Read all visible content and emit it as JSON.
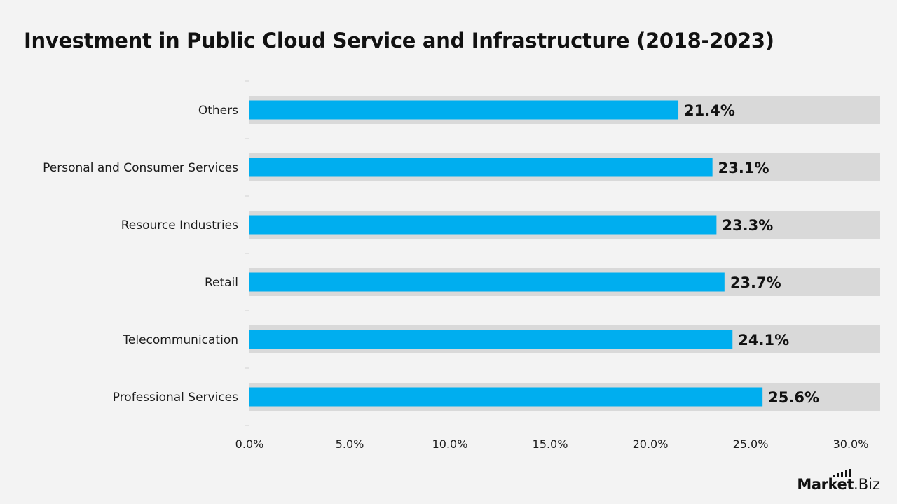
{
  "colors": {
    "bar": "#00aeef",
    "track": "#d9d9d9",
    "axis": "#d0d0d0",
    "text": "#1a1a1a"
  },
  "chart_data": {
    "type": "bar",
    "orientation": "horizontal",
    "title": "Investment in Public Cloud Service and Infrastructure (2018-2023)",
    "xlabel": "",
    "ylabel": "",
    "categories": [
      "Others",
      "Personal and Consumer Services",
      "Resource Industries",
      "Retail",
      "Telecommunication",
      "Professional Services"
    ],
    "values": [
      21.4,
      23.1,
      23.3,
      23.7,
      24.1,
      25.6
    ],
    "value_labels": [
      "21.4%",
      "23.1%",
      "23.3%",
      "23.7%",
      "24.1%",
      "25.6%"
    ],
    "xlim": [
      0,
      30
    ],
    "x_ticks": [
      0,
      5,
      10,
      15,
      20,
      25,
      30
    ],
    "x_tick_labels": [
      "0.0%",
      "5.0%",
      "10.0%",
      "15.0%",
      "20.0%",
      "25.0%",
      "30.0%"
    ],
    "grid": false,
    "legend": "none"
  },
  "brand": {
    "name_bold": "Market",
    "name_light": ".Biz",
    "icon": "bars-logo-icon"
  }
}
